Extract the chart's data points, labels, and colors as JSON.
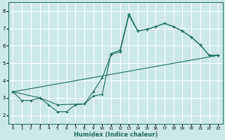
{
  "xlabel": "Humidex (Indice chaleur)",
  "bg_color": "#cce8e8",
  "grid_color": "#ffffff",
  "line_color": "#1a6b60",
  "xlim": [
    -0.5,
    23.5
  ],
  "ylim": [
    1.5,
    8.5
  ],
  "yticks": [
    2,
    3,
    4,
    5,
    6,
    7,
    8
  ],
  "xticks": [
    0,
    1,
    2,
    3,
    4,
    5,
    6,
    7,
    8,
    9,
    10,
    11,
    12,
    13,
    14,
    15,
    16,
    17,
    18,
    19,
    20,
    21,
    22,
    23
  ],
  "series1_x": [
    0,
    1,
    2,
    3,
    4,
    5,
    6,
    7,
    8,
    9,
    10,
    11,
    12,
    13,
    14,
    15,
    16,
    17,
    18,
    19,
    20,
    21,
    22,
    23
  ],
  "series1_y": [
    3.35,
    2.85,
    2.85,
    3.0,
    2.6,
    2.2,
    2.2,
    2.6,
    2.65,
    3.1,
    3.2,
    5.55,
    5.75,
    7.85,
    6.85,
    6.95,
    7.1,
    7.3,
    7.1,
    6.85,
    6.5,
    6.05,
    5.45,
    5.45
  ],
  "series2_x": [
    0,
    3,
    5,
    8,
    9,
    10,
    11,
    12,
    13,
    14,
    15,
    16,
    17,
    18,
    19,
    20,
    21,
    22,
    23
  ],
  "series2_y": [
    3.35,
    3.0,
    2.6,
    2.65,
    3.35,
    4.15,
    5.5,
    5.65,
    7.75,
    6.85,
    6.95,
    7.1,
    7.3,
    7.1,
    6.85,
    6.5,
    6.05,
    5.45,
    5.45
  ],
  "series3_x": [
    0,
    23
  ],
  "series3_y": [
    3.35,
    5.45
  ]
}
